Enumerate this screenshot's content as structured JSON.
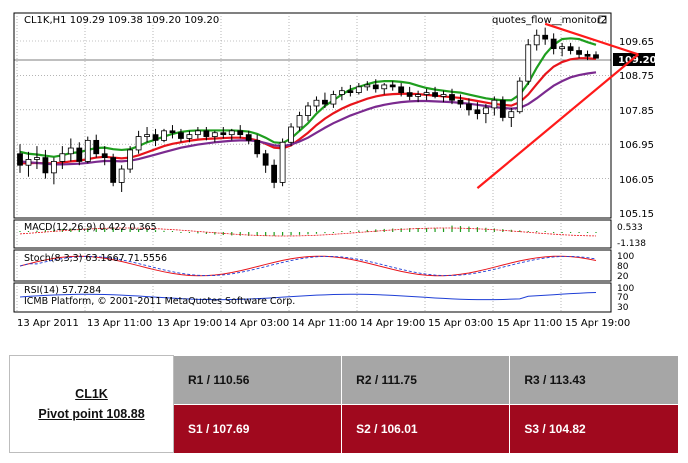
{
  "header": {
    "symbol_line": "CL1K,H1  109.29 109.38 109.20 109.20",
    "indicator_tag": "quotes_flow__monitor2"
  },
  "price_axis": {
    "labels": [
      "109.65",
      "108.75",
      "107.85",
      "106.95",
      "106.05",
      "105.15"
    ],
    "current_price": "109.20"
  },
  "time_axis": {
    "labels": [
      "13 Apr 2011",
      "13 Apr 11:00",
      "13 Apr 19:00",
      "14 Apr 03:00",
      "14 Apr 11:00",
      "14 Apr 19:00",
      "15 Apr 03:00",
      "15 Apr 11:00",
      "15 Apr 19:00"
    ]
  },
  "panels": {
    "macd": {
      "label": "MACD(12,26,9) 0.422 0.365",
      "axis_top": "0.533",
      "axis_bottom": "-1.138"
    },
    "stoch": {
      "label": "Stoch(8,3,3) 63.1667 71.5556",
      "axis_top": "100",
      "axis_mid": "80",
      "axis_bottom": "20"
    },
    "rsi": {
      "label": "RSI(14) 57.7284",
      "footer": "ICMB Platform, © 2001-2011 MetaQuotes Software Corp.",
      "axis_top": "100",
      "axis_mid": "70",
      "axis_bottom": "30"
    }
  },
  "chart_data": {
    "type": "candlestick",
    "symbol": "CL1K",
    "timeframe": "H1",
    "ylim": [
      105.15,
      110.0
    ],
    "candles": [
      [
        106.7,
        106.95,
        106.2,
        106.4
      ],
      [
        106.4,
        106.75,
        106.1,
        106.55
      ],
      [
        106.55,
        106.9,
        106.3,
        106.6
      ],
      [
        106.6,
        106.8,
        106.05,
        106.2
      ],
      [
        106.2,
        106.6,
        105.9,
        106.5
      ],
      [
        106.5,
        106.9,
        106.3,
        106.7
      ],
      [
        106.7,
        107.1,
        106.5,
        106.85
      ],
      [
        106.85,
        107.0,
        106.4,
        106.5
      ],
      [
        106.5,
        107.15,
        106.45,
        107.05
      ],
      [
        107.05,
        107.2,
        106.6,
        106.7
      ],
      [
        106.7,
        106.9,
        106.4,
        106.6
      ],
      [
        106.6,
        106.7,
        105.85,
        105.95
      ],
      [
        105.95,
        106.4,
        105.7,
        106.3
      ],
      [
        106.3,
        106.9,
        106.2,
        106.8
      ],
      [
        106.8,
        107.3,
        106.7,
        107.15
      ],
      [
        107.15,
        107.4,
        107.0,
        107.2
      ],
      [
        107.2,
        107.35,
        106.9,
        107.05
      ],
      [
        107.05,
        107.35,
        107.0,
        107.3
      ],
      [
        107.3,
        107.45,
        107.1,
        107.25
      ],
      [
        107.25,
        107.35,
        107.0,
        107.1
      ],
      [
        107.1,
        107.3,
        107.0,
        107.2
      ],
      [
        107.2,
        107.4,
        107.1,
        107.3
      ],
      [
        107.3,
        107.4,
        107.05,
        107.15
      ],
      [
        107.15,
        107.3,
        107.0,
        107.25
      ],
      [
        107.25,
        107.4,
        107.1,
        107.2
      ],
      [
        107.2,
        107.35,
        107.05,
        107.3
      ],
      [
        107.3,
        107.45,
        107.1,
        107.2
      ],
      [
        107.2,
        107.3,
        106.95,
        107.05
      ],
      [
        107.05,
        107.2,
        106.6,
        106.7
      ],
      [
        106.7,
        106.8,
        106.2,
        106.4
      ],
      [
        106.4,
        106.55,
        105.8,
        105.95
      ],
      [
        105.95,
        107.1,
        105.85,
        107.0
      ],
      [
        107.0,
        107.5,
        106.9,
        107.4
      ],
      [
        107.4,
        107.8,
        107.3,
        107.7
      ],
      [
        107.7,
        108.05,
        107.55,
        107.95
      ],
      [
        107.95,
        108.2,
        107.8,
        108.1
      ],
      [
        108.1,
        108.3,
        107.9,
        108.0
      ],
      [
        108.0,
        108.35,
        107.9,
        108.25
      ],
      [
        108.25,
        108.45,
        108.1,
        108.35
      ],
      [
        108.35,
        108.5,
        108.2,
        108.3
      ],
      [
        108.3,
        108.55,
        108.25,
        108.45
      ],
      [
        108.45,
        108.6,
        108.35,
        108.5
      ],
      [
        108.5,
        108.65,
        108.3,
        108.4
      ],
      [
        108.4,
        108.55,
        108.25,
        108.5
      ],
      [
        108.5,
        108.6,
        108.35,
        108.45
      ],
      [
        108.45,
        108.55,
        108.2,
        108.3
      ],
      [
        108.3,
        108.45,
        108.1,
        108.2
      ],
      [
        108.2,
        108.35,
        108.05,
        108.25
      ],
      [
        108.25,
        108.4,
        108.1,
        108.3
      ],
      [
        108.3,
        108.45,
        108.15,
        108.2
      ],
      [
        108.2,
        108.35,
        108.05,
        108.25
      ],
      [
        108.25,
        108.4,
        108.0,
        108.1
      ],
      [
        108.1,
        108.25,
        107.9,
        108.0
      ],
      [
        108.0,
        108.15,
        107.7,
        107.85
      ],
      [
        107.85,
        108.05,
        107.6,
        107.75
      ],
      [
        107.75,
        108.0,
        107.5,
        107.9
      ],
      [
        107.9,
        108.2,
        107.7,
        108.1
      ],
      [
        108.1,
        108.2,
        107.55,
        107.65
      ],
      [
        107.65,
        107.9,
        107.4,
        107.8
      ],
      [
        107.8,
        108.7,
        107.75,
        108.6
      ],
      [
        108.6,
        109.7,
        108.5,
        109.55
      ],
      [
        109.55,
        109.95,
        109.4,
        109.8
      ],
      [
        109.8,
        110.0,
        109.55,
        109.7
      ],
      [
        109.7,
        109.85,
        109.3,
        109.45
      ],
      [
        109.45,
        109.6,
        109.25,
        109.5
      ],
      [
        109.5,
        109.6,
        109.3,
        109.4
      ],
      [
        109.4,
        109.5,
        109.2,
        109.3
      ],
      [
        109.3,
        109.4,
        109.15,
        109.25
      ],
      [
        109.29,
        109.38,
        109.2,
        109.2
      ]
    ],
    "series": [
      {
        "name": "green",
        "color": "#1e9e1e",
        "values": [
          106.75,
          106.7,
          106.68,
          106.65,
          106.62,
          106.66,
          106.72,
          106.74,
          106.8,
          106.85,
          106.86,
          106.82,
          106.8,
          106.82,
          106.9,
          107.0,
          107.07,
          107.15,
          107.22,
          107.27,
          107.3,
          107.31,
          107.31,
          107.31,
          107.31,
          107.31,
          107.3,
          107.28,
          107.22,
          107.12,
          107.0,
          106.98,
          107.1,
          107.3,
          107.5,
          107.75,
          107.95,
          108.1,
          108.25,
          108.38,
          108.45,
          108.52,
          108.58,
          108.6,
          108.6,
          108.58,
          108.55,
          108.48,
          108.42,
          108.38,
          108.35,
          108.32,
          108.3,
          108.25,
          108.2,
          108.15,
          108.12,
          108.1,
          108.1,
          108.25,
          108.55,
          108.95,
          109.3,
          109.55,
          109.7,
          109.72,
          109.7,
          109.62,
          109.55
        ]
      },
      {
        "name": "red",
        "color": "#e8141b",
        "values": [
          106.45,
          106.45,
          106.46,
          106.45,
          106.45,
          106.47,
          106.5,
          106.52,
          106.56,
          106.6,
          106.62,
          106.6,
          106.58,
          106.6,
          106.66,
          106.74,
          106.82,
          106.9,
          106.96,
          107.0,
          107.04,
          107.07,
          107.09,
          107.1,
          107.11,
          107.12,
          107.12,
          107.1,
          107.05,
          106.96,
          106.86,
          106.84,
          106.92,
          107.08,
          107.25,
          107.45,
          107.62,
          107.76,
          107.88,
          107.98,
          108.06,
          108.14,
          108.2,
          108.24,
          108.26,
          108.27,
          108.27,
          108.26,
          108.24,
          108.22,
          108.2,
          108.18,
          108.16,
          108.12,
          108.08,
          108.04,
          108.0,
          107.98,
          107.96,
          108.05,
          108.25,
          108.52,
          108.78,
          108.98,
          109.1,
          109.17,
          109.2,
          109.2,
          109.18
        ]
      },
      {
        "name": "purple",
        "color": "#7b2a8f",
        "values": [
          106.5,
          106.48,
          106.46,
          106.44,
          106.42,
          106.42,
          106.43,
          106.44,
          106.46,
          106.49,
          106.51,
          106.51,
          106.5,
          106.52,
          106.56,
          106.62,
          106.68,
          106.74,
          106.8,
          106.86,
          106.9,
          106.94,
          106.97,
          107.0,
          107.02,
          107.04,
          107.05,
          107.05,
          107.03,
          106.98,
          106.92,
          106.9,
          106.94,
          107.02,
          107.12,
          107.25,
          107.38,
          107.5,
          107.6,
          107.7,
          107.78,
          107.86,
          107.93,
          107.98,
          108.02,
          108.05,
          108.07,
          108.08,
          108.08,
          108.07,
          108.06,
          108.05,
          108.03,
          108.01,
          107.98,
          107.95,
          107.92,
          107.9,
          107.88,
          107.9,
          108.0,
          108.15,
          108.32,
          108.48,
          108.6,
          108.7,
          108.76,
          108.8,
          108.83
        ]
      }
    ],
    "trendlines": [
      {
        "name": "support",
        "color": "#ff1a1a",
        "from": [
          54,
          105.8
        ],
        "to": [
          73,
          109.3
        ]
      },
      {
        "name": "resistance",
        "color": "#ff1a1a",
        "from": [
          62,
          110.1
        ],
        "to": [
          73,
          109.3
        ]
      }
    ]
  },
  "pivot": {
    "symbol": "CL1K",
    "pivot_label": "Pivot point 108.88",
    "resistances": [
      "R1 / 110.56",
      "R2  / 111.75",
      "R3 / 113.43"
    ],
    "supports": [
      "S1 / 107.69",
      "S2 /  106.01",
      "S3 /  104.82"
    ]
  }
}
